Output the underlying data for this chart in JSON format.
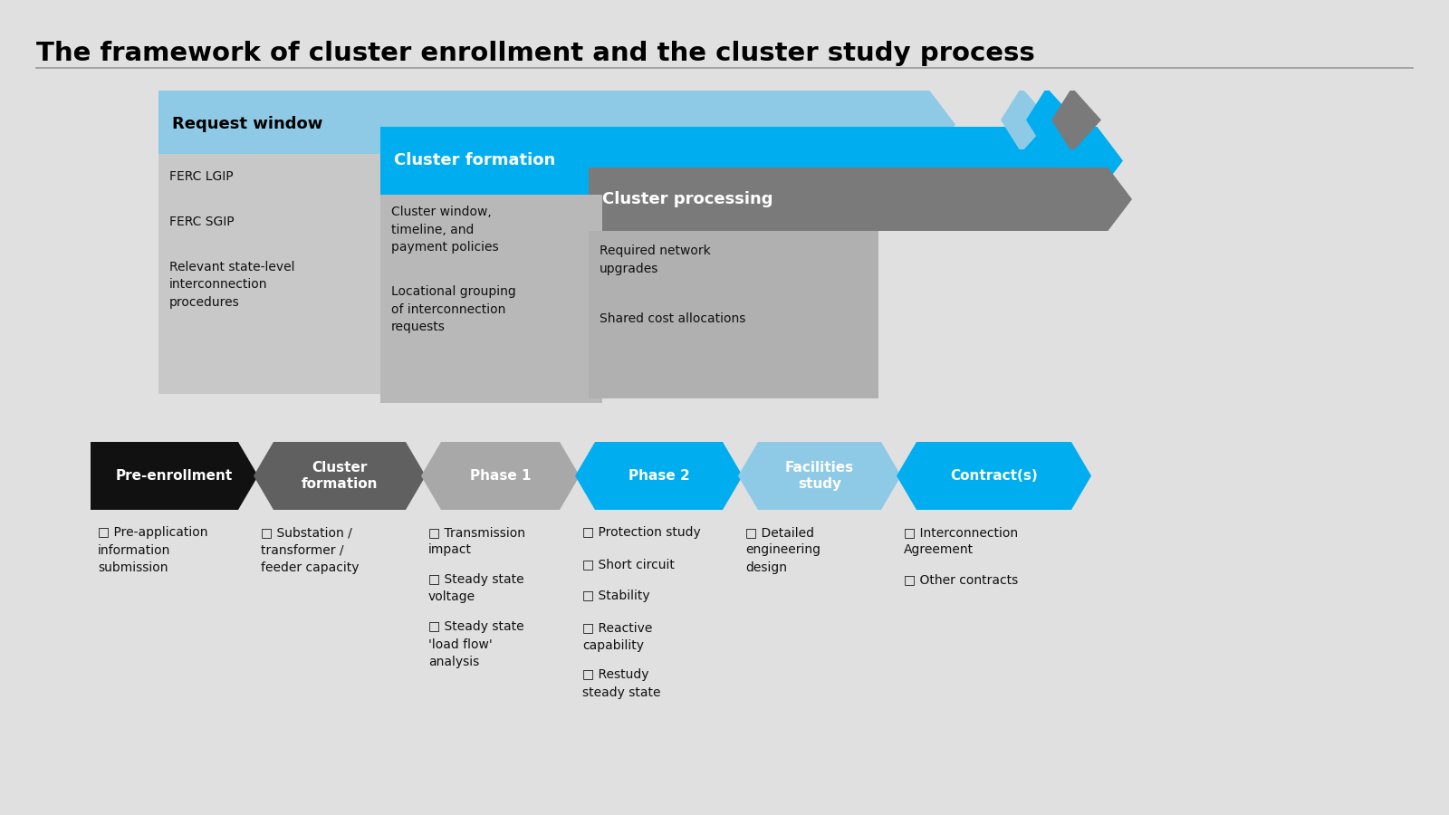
{
  "title": "The framework of cluster enrollment and the cluster study process",
  "bg_color": "#e0e0e0",
  "title_color": "#000000",
  "title_fontsize": 21,
  "top_section": {
    "light_blue_color": "#8ecae6",
    "cyan_color": "#00aeef",
    "dark_gray_color": "#7a7a7a",
    "content_gray1": "#c8c8c8",
    "content_gray2": "#b8b8b8",
    "content_gray3": "#b0b0b0",
    "box1_header": "Request window",
    "box1_items": [
      "FERC LGIP",
      "FERC SGIP",
      "Relevant state-level\ninterconnection\nprocedures"
    ],
    "box2_header": "Cluster formation",
    "box2_items": [
      "Cluster window,\ntimeline, and\npayment policies",
      "Locational grouping\nof interconnection\nrequests"
    ],
    "box3_header": "Cluster processing",
    "box3_items": [
      "Required network\nupgrades",
      "Shared cost allocations"
    ]
  },
  "bottom_section": {
    "stages": [
      "Pre-enrollment",
      "Cluster\nformation",
      "Phase 1",
      "Phase 2",
      "Facilities\nstudy",
      "Contract(s)"
    ],
    "colors": [
      "#111111",
      "#606060",
      "#a8a8a8",
      "#00aeef",
      "#8ecae6",
      "#00aeef"
    ],
    "text_colors": [
      "#ffffff",
      "#ffffff",
      "#ffffff",
      "#ffffff",
      "#ffffff",
      "#ffffff"
    ],
    "items": [
      [
        "Pre-application\ninformation\nsubmission"
      ],
      [
        "Substation /\ntransformer /\nfeeder capacity"
      ],
      [
        "Transmission\nimpact",
        "Steady state\nvoltage",
        "Steady state\n'load flow'\nanalysis"
      ],
      [
        "Protection study",
        "Short circuit",
        "Stability",
        "Reactive\ncapability",
        "Restudy\nsteady state"
      ],
      [
        "Detailed\nengineering\ndesign"
      ],
      [
        "Interconnection\nAgreement",
        "Other contracts"
      ]
    ]
  }
}
